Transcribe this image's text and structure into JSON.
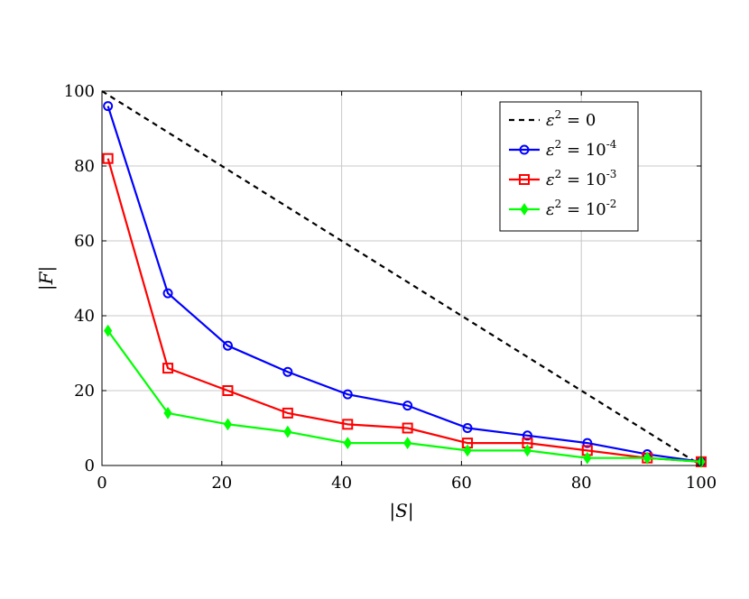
{
  "chart_data": {
    "type": "line",
    "xlabel": "|S|",
    "ylabel": "|F|",
    "xlim": [
      0,
      100
    ],
    "ylim": [
      0,
      100
    ],
    "xticks": [
      0,
      20,
      40,
      60,
      80,
      100
    ],
    "yticks": [
      0,
      20,
      40,
      60,
      80,
      100
    ],
    "grid": true,
    "legend_position": "top-right",
    "series": [
      {
        "name": "ε² = 0",
        "legend_base": "ε",
        "legend_exp_main": "2",
        "legend_rest": " = 0",
        "legend_exp_val": "",
        "color": "#000000",
        "dash": "dashed",
        "marker": "none",
        "x": [
          0,
          100
        ],
        "y": [
          100,
          0
        ]
      },
      {
        "name": "ε² = 10-4",
        "legend_base": "ε",
        "legend_exp_main": "2",
        "legend_rest": " = 10",
        "legend_exp_val": "-4",
        "color": "#0000ff",
        "dash": "solid",
        "marker": "circle",
        "x": [
          1,
          11,
          21,
          31,
          41,
          51,
          61,
          71,
          81,
          91,
          100
        ],
        "y": [
          96,
          46,
          32,
          25,
          19,
          16,
          10,
          8,
          6,
          3,
          1
        ]
      },
      {
        "name": "ε² = 10-3",
        "legend_base": "ε",
        "legend_exp_main": "2",
        "legend_rest": " = 10",
        "legend_exp_val": "-3",
        "color": "#ff0000",
        "dash": "solid",
        "marker": "square",
        "x": [
          1,
          11,
          21,
          31,
          41,
          51,
          61,
          71,
          81,
          91,
          100
        ],
        "y": [
          82,
          26,
          20,
          14,
          11,
          10,
          6,
          6,
          4,
          2,
          1
        ]
      },
      {
        "name": "ε² = 10-2",
        "legend_base": "ε",
        "legend_exp_main": "2",
        "legend_rest": " = 10",
        "legend_exp_val": "-2",
        "color": "#00ff00",
        "dash": "solid",
        "marker": "diamond",
        "x": [
          1,
          11,
          21,
          31,
          41,
          51,
          61,
          71,
          81,
          91,
          100
        ],
        "y": [
          36,
          14,
          11,
          9,
          6,
          6,
          4,
          4,
          2,
          2,
          1
        ]
      }
    ]
  }
}
